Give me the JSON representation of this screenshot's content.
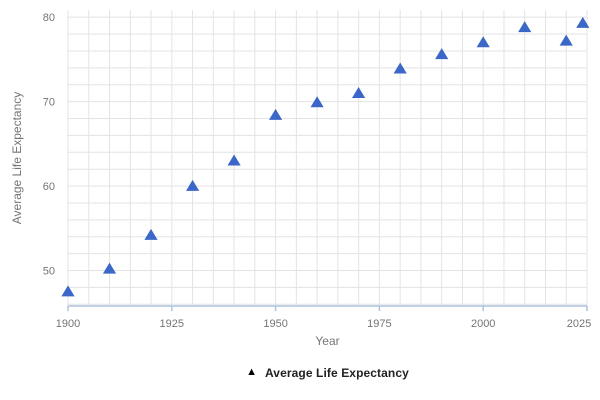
{
  "chart": {
    "xlabel": "Year",
    "ylabel": "Average Life Expectancy",
    "legend_label": "Average Life Expectancy",
    "colors": {
      "marker": "#3b67c8",
      "gridline": "#e3e3e3",
      "axis_line": "#aec4de",
      "tick_text": "#757575",
      "axis_title_text": "#757575",
      "legend_text": "#212121",
      "legend_marker": "#000000",
      "background": "#ffffff"
    }
  },
  "chart_data": {
    "type": "scatter",
    "title": "",
    "xlabel": "Year",
    "ylabel": "Average Life Expectancy",
    "legend_position": "bottom",
    "grid": true,
    "marker": "triangle",
    "series": [
      {
        "name": "Average Life Expectancy",
        "x": [
          1900,
          1910,
          1920,
          1930,
          1940,
          1950,
          1960,
          1970,
          1980,
          1990,
          2000,
          2010,
          2020,
          2024
        ],
        "y": [
          47.5,
          50.2,
          54.2,
          60.0,
          63.0,
          68.4,
          69.9,
          71.0,
          73.9,
          75.6,
          77.0,
          78.8,
          77.2,
          79.3
        ]
      }
    ],
    "xlim": [
      1900,
      2025
    ],
    "ylim": [
      45.8,
      80.85
    ],
    "x_ticks": [
      "1900",
      "1925",
      "1950",
      "1975",
      "2000",
      "2025"
    ],
    "x_tick_values": [
      1900,
      1925,
      1950,
      1975,
      2000,
      2025
    ],
    "x_minor_step": 5,
    "y_ticks": [
      "50",
      "60",
      "70",
      "80"
    ],
    "y_tick_values": [
      50,
      60,
      70,
      80
    ],
    "y_minor_step": 2
  }
}
